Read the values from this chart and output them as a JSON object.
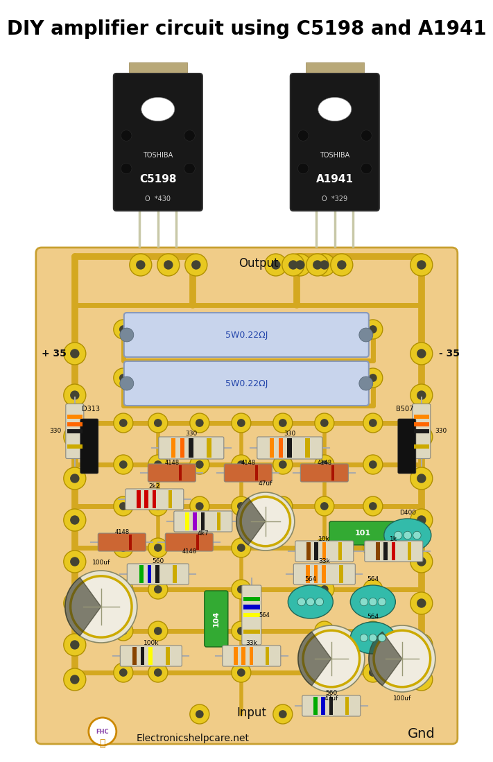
{
  "title": "DIY amplifier circuit using C5198 and A1941",
  "title_fontsize": 20,
  "title_color": "#000000",
  "title_fontweight": "bold",
  "bg_color": "#ffffff",
  "fig_width": 6.56,
  "fig_height": 10.79,
  "board_bg": "#f0cc88",
  "board_border_color": "#c8a030",
  "trace_color": "#d4a820",
  "pad_color": "#e8c820",
  "pad_hole_color": "#444433"
}
